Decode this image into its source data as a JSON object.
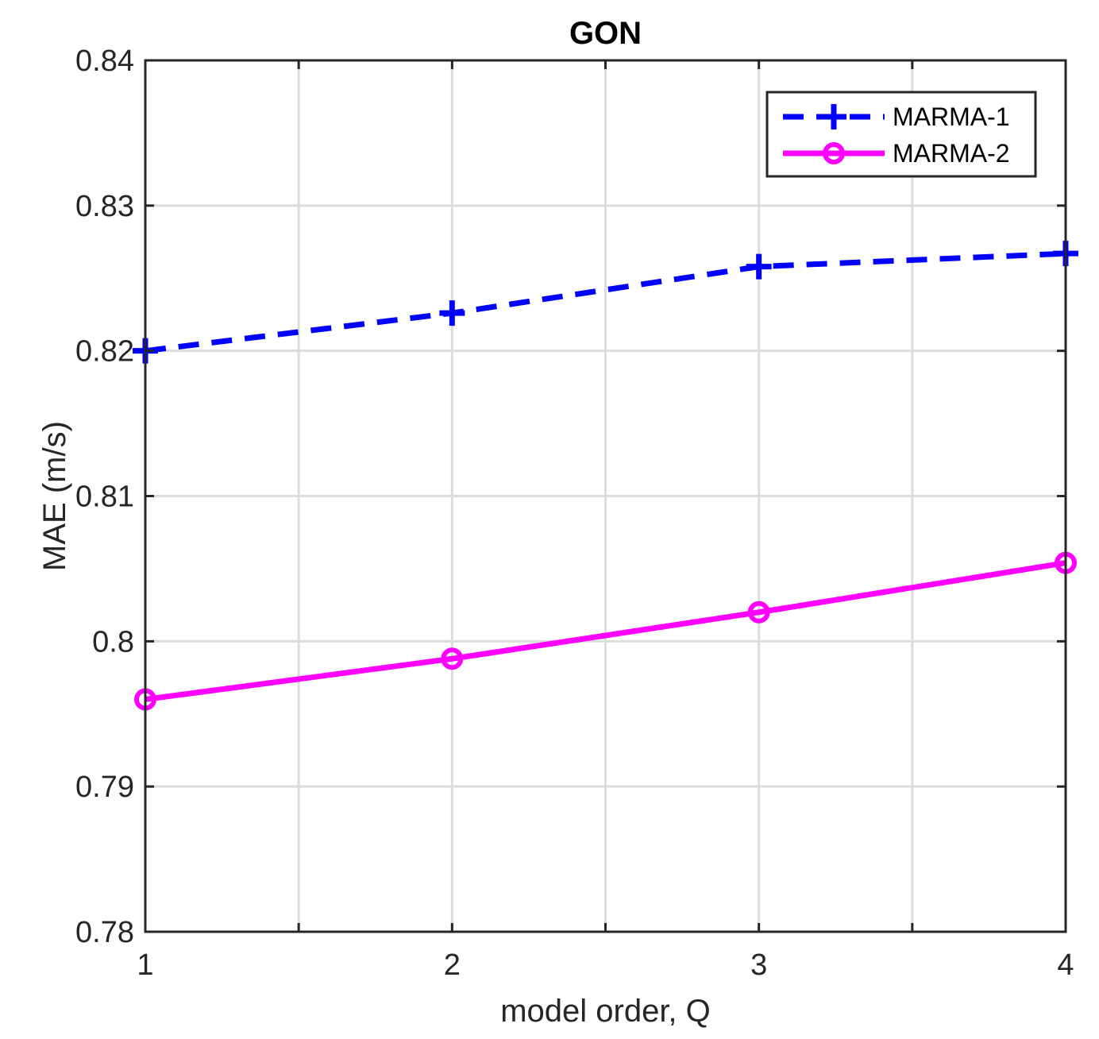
{
  "chart_data": {
    "type": "line",
    "title": "GON",
    "xlabel": "model order, Q",
    "ylabel": "MAE (m/s)",
    "xlim": [
      1,
      4
    ],
    "ylim": [
      0.78,
      0.84
    ],
    "xticks": [
      1,
      2,
      3,
      4
    ],
    "xtick_labels": [
      "1",
      "2",
      "3",
      "4"
    ],
    "yticks": [
      0.78,
      0.79,
      0.8,
      0.81,
      0.82,
      0.83,
      0.84
    ],
    "ytick_labels": [
      "0.78",
      "0.79",
      "0.8",
      "0.81",
      "0.82",
      "0.83",
      "0.84"
    ],
    "grid": true,
    "legend_position": "top-right",
    "x": [
      1,
      2,
      3,
      4
    ],
    "series": [
      {
        "name": "MARMA-1",
        "values": [
          0.82,
          0.8226,
          0.8258,
          0.8267
        ],
        "color": "#0000ff",
        "line_style": "dashed",
        "marker": "plus"
      },
      {
        "name": "MARMA-2",
        "values": [
          0.796,
          0.7988,
          0.802,
          0.8054
        ],
        "color": "#ff00ff",
        "line_style": "solid",
        "marker": "circle"
      }
    ]
  }
}
